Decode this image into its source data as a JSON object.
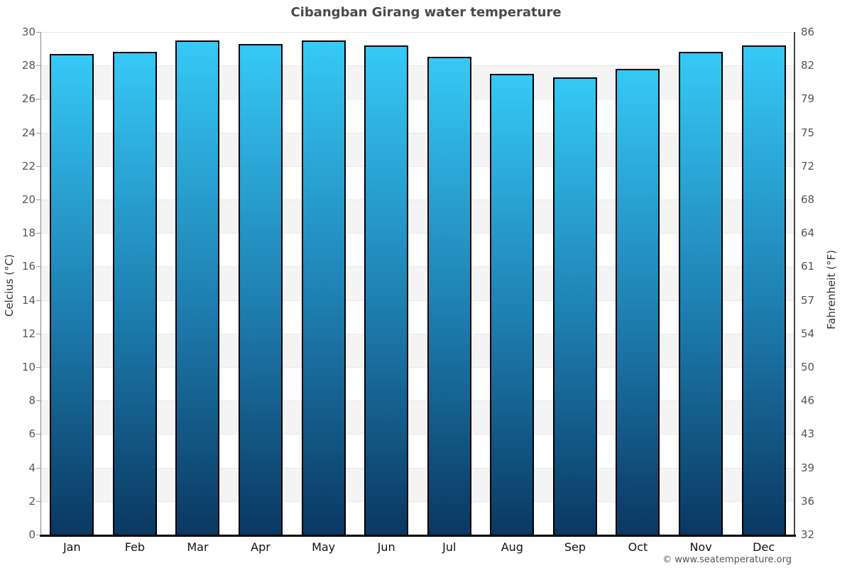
{
  "page": {
    "footer": "© www.seatemperature.org"
  },
  "chart_data": {
    "type": "bar",
    "title": "Cibangban Girang water temperature",
    "categories": [
      "Jan",
      "Feb",
      "Mar",
      "Apr",
      "May",
      "Jun",
      "Jul",
      "Aug",
      "Sep",
      "Oct",
      "Nov",
      "Dec"
    ],
    "values": [
      28.7,
      28.8,
      29.5,
      29.3,
      29.5,
      29.2,
      28.5,
      27.5,
      27.3,
      27.8,
      28.8,
      29.2
    ],
    "xlabel": "",
    "ylabel_left": "Celcius (°C)",
    "ylabel_right": "Fahrenheit (°F)",
    "ylim": [
      0,
      30
    ],
    "ytick_step_celsius": 2,
    "yticks_celsius": [
      30,
      28,
      26,
      24,
      22,
      20,
      18,
      16,
      14,
      12,
      10,
      8,
      6,
      4,
      2,
      0
    ],
    "yticks_fahrenheit": [
      86,
      82,
      79,
      75,
      72,
      68,
      64,
      61,
      57,
      54,
      50,
      46,
      43,
      39,
      36,
      32
    ],
    "grid": "alternating horizontal bands every 2°C",
    "legend": "none",
    "colors": {
      "bar_gradient_top": "#36c9f6",
      "bar_gradient_mid": "#1e80b2",
      "bar_gradient_bottom": "#0a3862",
      "bar_border": "#000000",
      "band_gray": "#f4f4f4",
      "band_white": "#ffffff",
      "title_text": "#4a4a4a"
    }
  }
}
